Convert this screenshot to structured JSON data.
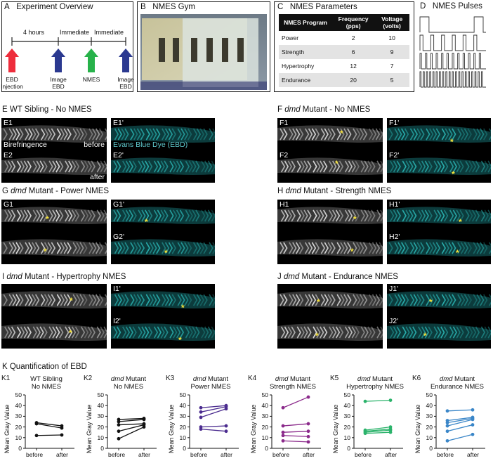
{
  "panelA": {
    "label": "A",
    "title": "Experiment Overview",
    "interval1": "4 hours",
    "interval2": "Immediate",
    "interval3": "Immediate",
    "steps": [
      {
        "line1": "EBD",
        "line2": "Injection",
        "color": "#ee2d3c"
      },
      {
        "line1": "Image",
        "line2": "EBD",
        "color": "#2b3990"
      },
      {
        "line1": "NMES",
        "line2": "",
        "color": "#27b24a"
      },
      {
        "line1": "Image",
        "line2": "EBD",
        "color": "#2b3990"
      }
    ]
  },
  "panelB": {
    "label": "B",
    "title": "NMES Gym"
  },
  "panelC": {
    "label": "C",
    "title": "NMES Parameters",
    "headers": [
      "NMES Program",
      "Frequency (pps)",
      "Voltage (volts)"
    ],
    "rows": [
      [
        "Power",
        "2",
        "10"
      ],
      [
        "Strength",
        "6",
        "9"
      ],
      [
        "Hypertrophy",
        "12",
        "7"
      ],
      [
        "Endurance",
        "20",
        "5"
      ]
    ]
  },
  "panelD": {
    "label": "D",
    "title": "NMES Pulses",
    "pulse_counts": [
      2,
      6,
      12,
      20
    ]
  },
  "panelE": {
    "title": "E   WT Sibling - No NMES",
    "a": "E1",
    "b": "E1'",
    "c": "E2",
    "d": "E2'",
    "birefringence": "Birefringence",
    "before": "before",
    "after": "after",
    "ebd": "Evans Blue Dye (EBD)"
  },
  "panelF": {
    "title_pre": "F   ",
    "title_em": "dmd",
    "title_post": " Mutant - No NMES",
    "a": "F1",
    "b": "F1'",
    "c": "F2",
    "d": "F2'"
  },
  "panelG": {
    "title_pre": "G   ",
    "title_em": "dmd",
    "title_post": " Mutant - Power NMES",
    "a": "G1",
    "b": "G1'",
    "c": "",
    "d": "G2'"
  },
  "panelH": {
    "title_pre": "H   ",
    "title_em": "dmd",
    "title_post": " Mutant - Strength NMES",
    "a": "H1",
    "b": "H1'",
    "c": "",
    "d": "H2'"
  },
  "panelI": {
    "title_pre": "I   ",
    "title_em": "dmd",
    "title_post": " Mutant - Hypertrophy NMES",
    "a": "",
    "b": "I1'",
    "c": "",
    "d": "I2'"
  },
  "panelJ": {
    "title_pre": "J   ",
    "title_em": "dmd",
    "title_post": " Mutant - Endurance NMES",
    "a": "",
    "b": "J1'",
    "c": "",
    "d": "J2'"
  },
  "panelK": {
    "title": "K   Quantification of EBD",
    "ylabel": "Mean Gray Value"
  },
  "star": "*",
  "chart_data": [
    {
      "id": "K1",
      "type": "line",
      "title": [
        "WT Sibling",
        "No NMES"
      ],
      "title_italic": false,
      "categories": [
        "before",
        "after"
      ],
      "ylim": [
        0,
        50
      ],
      "yticks": [
        0,
        10,
        20,
        30,
        40,
        50
      ],
      "color": "#111111",
      "series": [
        {
          "values": [
            24,
            21
          ]
        },
        {
          "values": [
            23,
            19
          ]
        },
        {
          "values": [
            12,
            12.5
          ]
        }
      ]
    },
    {
      "id": "K2",
      "type": "line",
      "title": [
        "dmd Mutant",
        "No NMES"
      ],
      "title_italic": true,
      "categories": [
        "before",
        "after"
      ],
      "ylim": [
        0,
        50
      ],
      "yticks": [
        0,
        10,
        20,
        30,
        40,
        50
      ],
      "color": "#111111",
      "series": [
        {
          "values": [
            27,
            28
          ]
        },
        {
          "values": [
            25,
            27
          ]
        },
        {
          "values": [
            22,
            23
          ]
        },
        {
          "values": [
            16,
            22
          ]
        },
        {
          "values": [
            9,
            20
          ]
        }
      ]
    },
    {
      "id": "K3",
      "type": "line",
      "title": [
        "dmd Mutant",
        "Power NMES"
      ],
      "title_italic": true,
      "categories": [
        "before",
        "after"
      ],
      "ylim": [
        0,
        50
      ],
      "yticks": [
        0,
        10,
        20,
        30,
        40,
        50
      ],
      "color": "#4b2c8f",
      "series": [
        {
          "values": [
            38,
            40
          ]
        },
        {
          "values": [
            34,
            39
          ]
        },
        {
          "values": [
            29,
            37
          ]
        },
        {
          "values": [
            20,
            21
          ]
        },
        {
          "values": [
            18,
            16
          ]
        }
      ]
    },
    {
      "id": "K4",
      "type": "line",
      "title": [
        "dmd Mutant",
        "Strength NMES"
      ],
      "title_italic": true,
      "categories": [
        "before",
        "after"
      ],
      "ylim": [
        0,
        50
      ],
      "yticks": [
        0,
        10,
        20,
        30,
        40,
        50
      ],
      "color": "#8b2a8b",
      "series": [
        {
          "values": [
            38,
            48
          ]
        },
        {
          "values": [
            21,
            23
          ]
        },
        {
          "values": [
            15,
            16
          ]
        },
        {
          "values": [
            12,
            11
          ]
        },
        {
          "values": [
            7,
            6
          ]
        }
      ]
    },
    {
      "id": "K5",
      "type": "line",
      "title": [
        "dmd Mutant",
        "Hypertrophy NMES"
      ],
      "title_italic": true,
      "categories": [
        "before",
        "after"
      ],
      "ylim": [
        0,
        50
      ],
      "yticks": [
        0,
        10,
        20,
        30,
        40,
        50
      ],
      "color": "#2bb36b",
      "series": [
        {
          "values": [
            44,
            45
          ]
        },
        {
          "values": [
            17,
            20
          ]
        },
        {
          "values": [
            16,
            18
          ]
        },
        {
          "values": [
            15,
            17
          ]
        },
        {
          "values": [
            14,
            15
          ]
        }
      ]
    },
    {
      "id": "K6",
      "type": "line",
      "title": [
        "dmd Mutant",
        "Endurance NMES"
      ],
      "title_italic": true,
      "categories": [
        "before",
        "after"
      ],
      "ylim": [
        0,
        50
      ],
      "yticks": [
        0,
        10,
        20,
        30,
        40,
        50
      ],
      "color": "#3a86c8",
      "series": [
        {
          "values": [
            35,
            36
          ]
        },
        {
          "values": [
            26,
            29
          ]
        },
        {
          "values": [
            24,
            28
          ]
        },
        {
          "values": [
            21,
            27
          ]
        },
        {
          "values": [
            16,
            22
          ]
        },
        {
          "values": [
            7,
            13
          ]
        }
      ]
    }
  ]
}
